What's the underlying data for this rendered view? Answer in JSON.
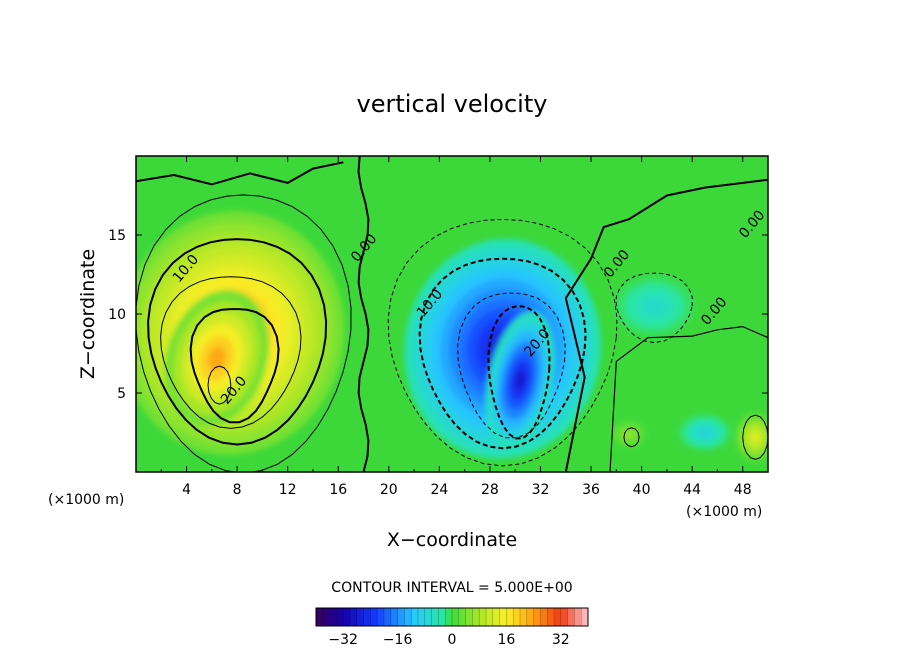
{
  "chart_data": {
    "type": "heatmap",
    "title": "vertical velocity",
    "xlabel": "X−coordinate",
    "ylabel": "Z−coordinate",
    "x_unit_left": "(×1000 m)",
    "x_unit_right": "(×1000 m)",
    "xlim": [
      0,
      50
    ],
    "ylim": [
      0,
      20
    ],
    "x_ticks": [
      "4",
      "8",
      "12",
      "16",
      "20",
      "24",
      "28",
      "32",
      "36",
      "40",
      "44",
      "48"
    ],
    "y_ticks": [
      "5",
      "10",
      "15"
    ],
    "contour_interval_label": "CONTOUR INTERVAL = 5.000E+00",
    "contour_interval": 5,
    "contour_labels": [
      {
        "text": "10.0",
        "x": 4.2,
        "y": 12.7
      },
      {
        "text": "20.0",
        "x": 8.0,
        "y": 5.0
      },
      {
        "text": "0.00",
        "x": 18.3,
        "y": 14.0
      },
      {
        "text": "10.0",
        "x": 23.5,
        "y": 10.5
      },
      {
        "text": "20.0",
        "x": 32.0,
        "y": 8.0
      },
      {
        "text": "0.00",
        "x": 38.3,
        "y": 13.0
      },
      {
        "text": "0.00",
        "x": 46.0,
        "y": 10.0
      },
      {
        "text": "0.00",
        "x": 49.0,
        "y": 15.5
      }
    ],
    "colorbar": {
      "min": -40,
      "max": 40,
      "ticks": [
        "−32",
        "−16",
        "0",
        "16",
        "32"
      ]
    },
    "grid": false,
    "features": [
      {
        "name": "updraft",
        "x": 7.0,
        "y": 7.0,
        "peak": 27
      },
      {
        "name": "downdraft",
        "x": 30.5,
        "y": 5.5,
        "peak": -32
      },
      {
        "name": "small-updraft",
        "x": 49.0,
        "y": 2.2,
        "peak": 16
      }
    ]
  }
}
